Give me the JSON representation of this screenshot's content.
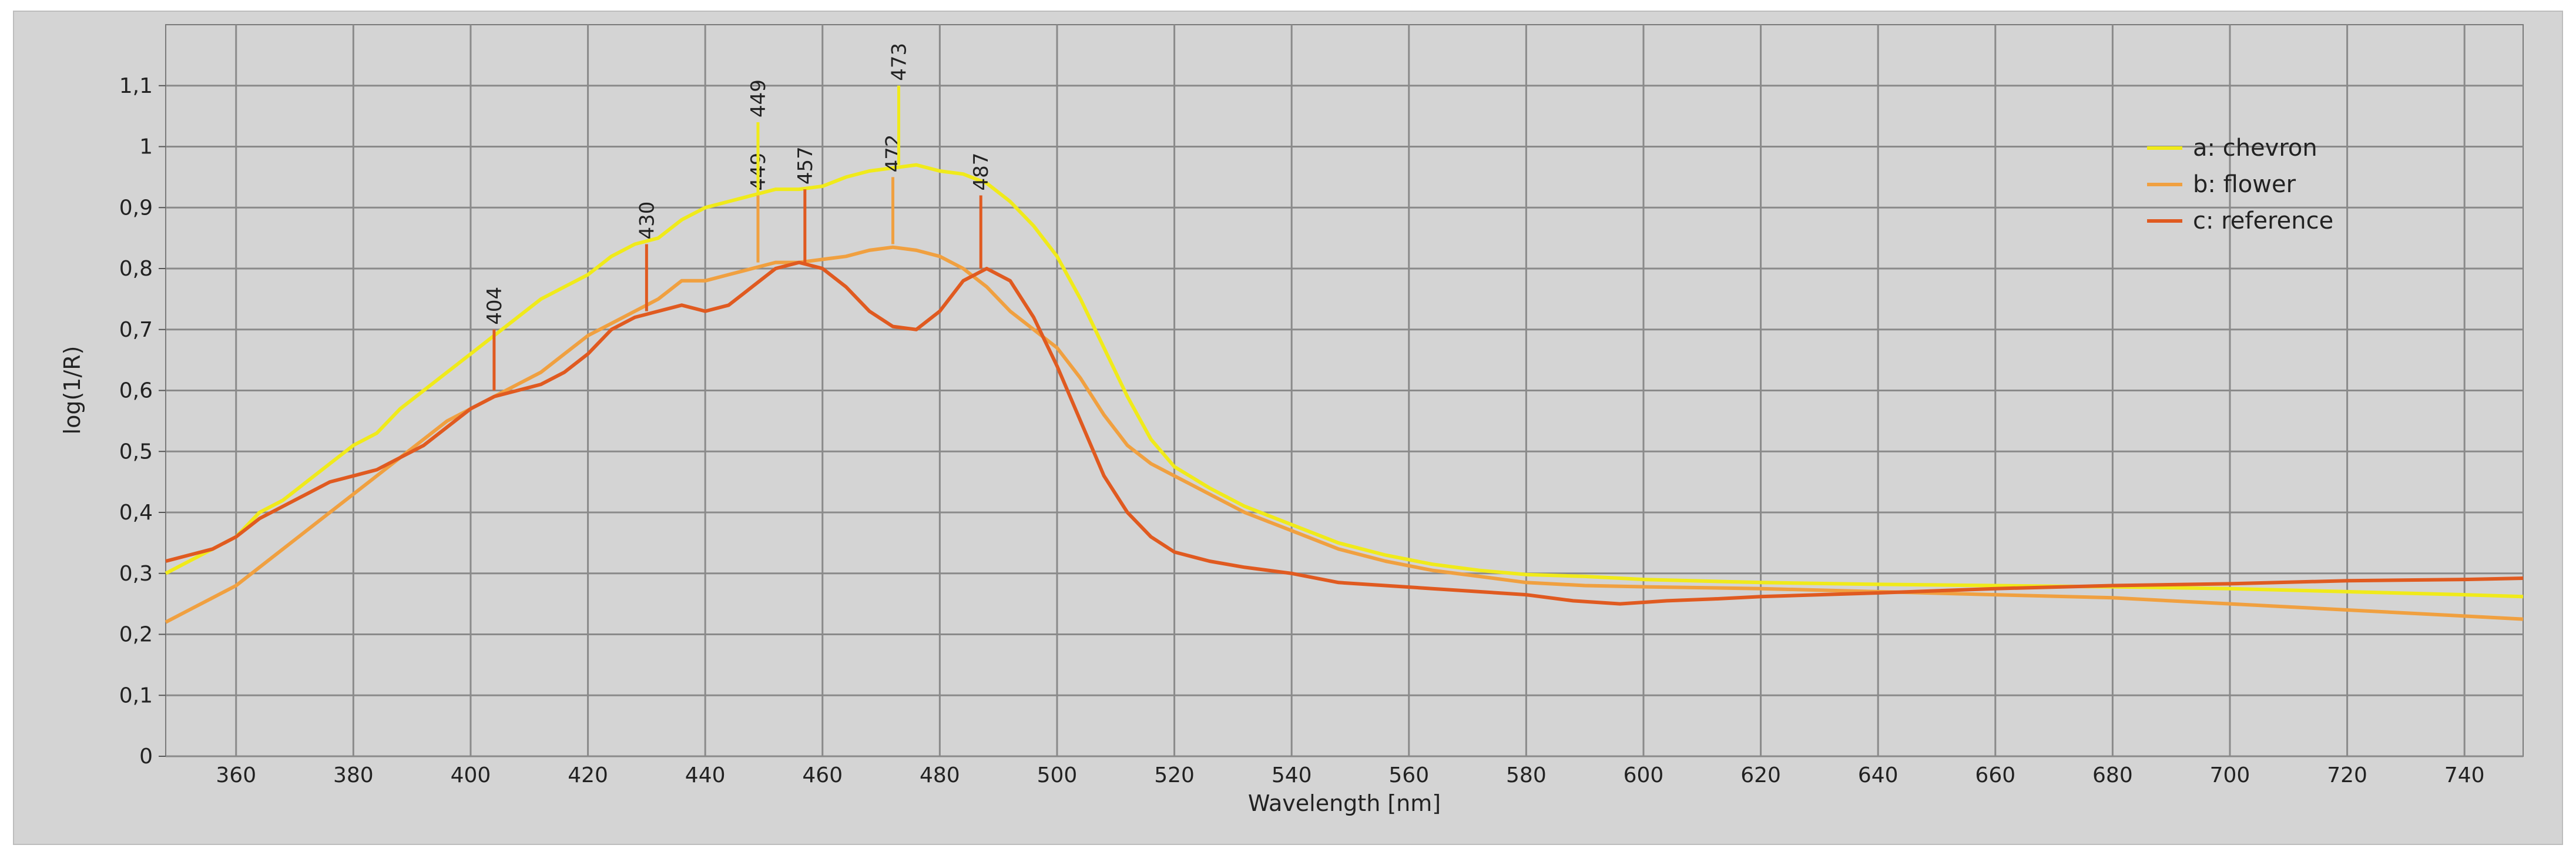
{
  "chart_data": {
    "type": "line",
    "title": "",
    "xlabel": "Wavelength [nm]",
    "ylabel": "log(1/R)",
    "xlim": [
      348,
      750
    ],
    "ylim": [
      0,
      1.2
    ],
    "grid": true,
    "legend_position": "top-right",
    "x_ticks": [
      "360",
      "380",
      "400",
      "420",
      "440",
      "460",
      "480",
      "500",
      "520",
      "540",
      "560",
      "580",
      "600",
      "620",
      "640",
      "660",
      "680",
      "700",
      "720",
      "740"
    ],
    "y_ticks": [
      "0",
      "0,1",
      "0,2",
      "0,3",
      "0,4",
      "0,5",
      "0,6",
      "0,7",
      "0,8",
      "0,9",
      "1",
      "1,1"
    ],
    "series": [
      {
        "name": "a: chevron",
        "color": "#f0ea1a",
        "points": [
          [
            348,
            0.3
          ],
          [
            352,
            0.32
          ],
          [
            356,
            0.34
          ],
          [
            360,
            0.36
          ],
          [
            364,
            0.4
          ],
          [
            368,
            0.42
          ],
          [
            372,
            0.45
          ],
          [
            376,
            0.48
          ],
          [
            380,
            0.51
          ],
          [
            384,
            0.53
          ],
          [
            388,
            0.57
          ],
          [
            392,
            0.6
          ],
          [
            396,
            0.63
          ],
          [
            400,
            0.66
          ],
          [
            404,
            0.69
          ],
          [
            408,
            0.72
          ],
          [
            412,
            0.75
          ],
          [
            416,
            0.77
          ],
          [
            420,
            0.79
          ],
          [
            424,
            0.82
          ],
          [
            428,
            0.84
          ],
          [
            432,
            0.85
          ],
          [
            436,
            0.88
          ],
          [
            440,
            0.9
          ],
          [
            444,
            0.91
          ],
          [
            448,
            0.92
          ],
          [
            452,
            0.93
          ],
          [
            456,
            0.93
          ],
          [
            460,
            0.935
          ],
          [
            464,
            0.95
          ],
          [
            468,
            0.96
          ],
          [
            472,
            0.965
          ],
          [
            476,
            0.97
          ],
          [
            480,
            0.96
          ],
          [
            484,
            0.955
          ],
          [
            488,
            0.94
          ],
          [
            492,
            0.91
          ],
          [
            496,
            0.87
          ],
          [
            500,
            0.82
          ],
          [
            504,
            0.75
          ],
          [
            508,
            0.67
          ],
          [
            512,
            0.59
          ],
          [
            516,
            0.52
          ],
          [
            520,
            0.475
          ],
          [
            526,
            0.44
          ],
          [
            532,
            0.41
          ],
          [
            540,
            0.38
          ],
          [
            548,
            0.35
          ],
          [
            556,
            0.33
          ],
          [
            564,
            0.315
          ],
          [
            572,
            0.305
          ],
          [
            580,
            0.298
          ],
          [
            590,
            0.295
          ],
          [
            600,
            0.29
          ],
          [
            620,
            0.285
          ],
          [
            640,
            0.282
          ],
          [
            660,
            0.28
          ],
          [
            680,
            0.278
          ],
          [
            700,
            0.275
          ],
          [
            720,
            0.27
          ],
          [
            740,
            0.265
          ],
          [
            750,
            0.262
          ]
        ]
      },
      {
        "name": "b: flower",
        "color": "#f0a040",
        "points": [
          [
            348,
            0.22
          ],
          [
            352,
            0.24
          ],
          [
            356,
            0.26
          ],
          [
            360,
            0.28
          ],
          [
            364,
            0.31
          ],
          [
            368,
            0.34
          ],
          [
            372,
            0.37
          ],
          [
            376,
            0.4
          ],
          [
            380,
            0.43
          ],
          [
            384,
            0.46
          ],
          [
            388,
            0.49
          ],
          [
            392,
            0.52
          ],
          [
            396,
            0.55
          ],
          [
            400,
            0.57
          ],
          [
            404,
            0.59
          ],
          [
            408,
            0.61
          ],
          [
            412,
            0.63
          ],
          [
            416,
            0.66
          ],
          [
            420,
            0.69
          ],
          [
            424,
            0.71
          ],
          [
            428,
            0.73
          ],
          [
            430,
            0.74
          ],
          [
            432,
            0.75
          ],
          [
            436,
            0.78
          ],
          [
            440,
            0.78
          ],
          [
            444,
            0.79
          ],
          [
            448,
            0.8
          ],
          [
            452,
            0.81
          ],
          [
            456,
            0.81
          ],
          [
            460,
            0.815
          ],
          [
            464,
            0.82
          ],
          [
            468,
            0.83
          ],
          [
            472,
            0.835
          ],
          [
            476,
            0.83
          ],
          [
            480,
            0.82
          ],
          [
            484,
            0.8
          ],
          [
            488,
            0.77
          ],
          [
            492,
            0.73
          ],
          [
            496,
            0.7
          ],
          [
            500,
            0.67
          ],
          [
            504,
            0.62
          ],
          [
            508,
            0.56
          ],
          [
            512,
            0.51
          ],
          [
            516,
            0.48
          ],
          [
            520,
            0.46
          ],
          [
            526,
            0.43
          ],
          [
            532,
            0.4
          ],
          [
            540,
            0.37
          ],
          [
            548,
            0.34
          ],
          [
            556,
            0.32
          ],
          [
            564,
            0.305
          ],
          [
            572,
            0.295
          ],
          [
            580,
            0.285
          ],
          [
            590,
            0.28
          ],
          [
            600,
            0.278
          ],
          [
            620,
            0.275
          ],
          [
            640,
            0.27
          ],
          [
            660,
            0.265
          ],
          [
            680,
            0.26
          ],
          [
            700,
            0.25
          ],
          [
            720,
            0.24
          ],
          [
            740,
            0.23
          ],
          [
            750,
            0.225
          ]
        ]
      },
      {
        "name": "c: reference",
        "color": "#e05a20",
        "points": [
          [
            348,
            0.32
          ],
          [
            352,
            0.33
          ],
          [
            356,
            0.34
          ],
          [
            360,
            0.36
          ],
          [
            364,
            0.39
          ],
          [
            368,
            0.41
          ],
          [
            372,
            0.43
          ],
          [
            376,
            0.45
          ],
          [
            380,
            0.46
          ],
          [
            384,
            0.47
          ],
          [
            388,
            0.49
          ],
          [
            392,
            0.51
          ],
          [
            396,
            0.54
          ],
          [
            400,
            0.57
          ],
          [
            404,
            0.59
          ],
          [
            408,
            0.6
          ],
          [
            412,
            0.61
          ],
          [
            416,
            0.63
          ],
          [
            420,
            0.66
          ],
          [
            424,
            0.7
          ],
          [
            428,
            0.72
          ],
          [
            432,
            0.73
          ],
          [
            436,
            0.74
          ],
          [
            440,
            0.73
          ],
          [
            444,
            0.74
          ],
          [
            448,
            0.77
          ],
          [
            452,
            0.8
          ],
          [
            456,
            0.81
          ],
          [
            460,
            0.8
          ],
          [
            464,
            0.77
          ],
          [
            468,
            0.73
          ],
          [
            472,
            0.705
          ],
          [
            476,
            0.7
          ],
          [
            480,
            0.73
          ],
          [
            484,
            0.78
          ],
          [
            488,
            0.8
          ],
          [
            492,
            0.78
          ],
          [
            496,
            0.72
          ],
          [
            500,
            0.64
          ],
          [
            504,
            0.55
          ],
          [
            508,
            0.46
          ],
          [
            512,
            0.4
          ],
          [
            516,
            0.36
          ],
          [
            520,
            0.335
          ],
          [
            526,
            0.32
          ],
          [
            532,
            0.31
          ],
          [
            540,
            0.3
          ],
          [
            548,
            0.285
          ],
          [
            556,
            0.28
          ],
          [
            564,
            0.275
          ],
          [
            572,
            0.27
          ],
          [
            580,
            0.265
          ],
          [
            588,
            0.255
          ],
          [
            596,
            0.25
          ],
          [
            604,
            0.255
          ],
          [
            612,
            0.258
          ],
          [
            620,
            0.262
          ],
          [
            640,
            0.268
          ],
          [
            660,
            0.275
          ],
          [
            680,
            0.28
          ],
          [
            700,
            0.283
          ],
          [
            720,
            0.288
          ],
          [
            740,
            0.29
          ],
          [
            750,
            0.292
          ]
        ]
      }
    ],
    "annotations": [
      {
        "label": "404",
        "x": 404,
        "y0": 0.6,
        "y1": 0.7,
        "color": "#e05a20"
      },
      {
        "label": "430",
        "x": 430,
        "y0": 0.73,
        "y1": 0.84,
        "color": "#e05a20"
      },
      {
        "label": "449",
        "x": 449,
        "y0": 0.81,
        "y1": 0.92,
        "color": "#f0a040"
      },
      {
        "label": "449",
        "x": 449,
        "y0": 0.92,
        "y1": 1.04,
        "color": "#f0ea1a"
      },
      {
        "label": "457",
        "x": 457,
        "y0": 0.81,
        "y1": 0.93,
        "color": "#e05a20"
      },
      {
        "label": "472",
        "x": 472,
        "y0": 0.84,
        "y1": 0.95,
        "color": "#f0a040"
      },
      {
        "label": "473",
        "x": 473,
        "y0": 0.97,
        "y1": 1.1,
        "color": "#f0ea1a"
      },
      {
        "label": "487",
        "x": 487,
        "y0": 0.8,
        "y1": 0.92,
        "color": "#e05a20"
      }
    ]
  }
}
